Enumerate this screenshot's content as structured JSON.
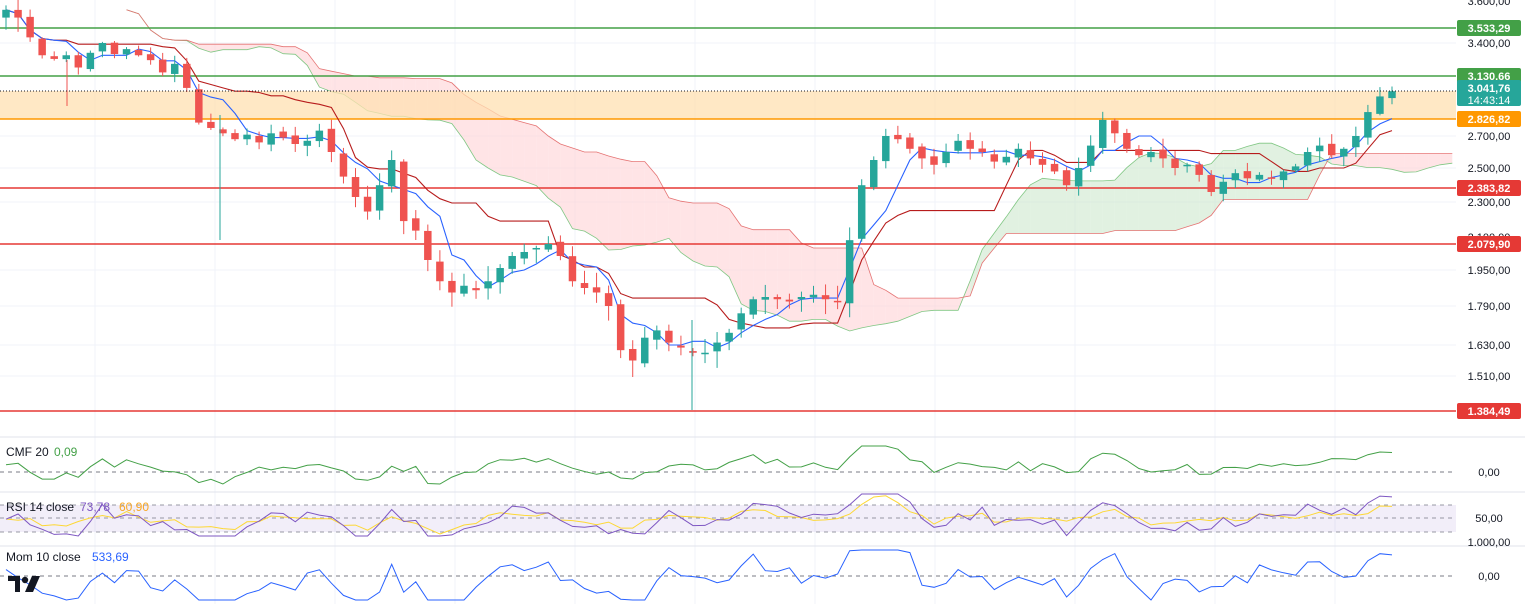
{
  "chart_data": {
    "type": "candlestick",
    "price_axis": {
      "ticks": [
        "3.400,00",
        "2.700,00",
        "2.500,00",
        "2.300,00",
        "1.950,00",
        "1.790,00",
        "1.630,00",
        "1.510,00"
      ],
      "partial_ticks": [
        "3.600,00",
        "2.100,00"
      ]
    },
    "horizontal_levels": [
      {
        "label": "3.533,29",
        "value": 3533.29,
        "color": "#43a047"
      },
      {
        "label": "3.130,66",
        "value": 3130.66,
        "color": "#43a047"
      },
      {
        "label": "2.826,82",
        "value": 2826.82,
        "color": "#ff9800"
      },
      {
        "label": "2.383,82",
        "value": 2383.82,
        "color": "#e53935"
      },
      {
        "label": "2.079,90",
        "value": 2079.9,
        "color": "#e53935"
      },
      {
        "label": "1.384,49",
        "value": 1384.49,
        "color": "#e53935"
      }
    ],
    "current_price": {
      "label": "3.041,76",
      "countdown": "14:43:14",
      "value": 3041.76,
      "color": "#26a69a"
    },
    "zone": {
      "from": 2826.82,
      "to": 3041.76,
      "color": "#ffe0b2"
    },
    "candles_close": [
      3580,
      3560,
      3450,
      3300,
      3270,
      3300,
      3200,
      3320,
      3400,
      3310,
      3350,
      3300,
      3260,
      3160,
      3230,
      3060,
      2800,
      2760,
      2720,
      2680,
      2710,
      2660,
      2720,
      2690,
      2650,
      2670,
      2740,
      2600,
      2450,
      2330,
      2250,
      2400,
      2550,
      2200,
      2150,
      2000,
      1900,
      1850,
      1880,
      1860,
      1900,
      1960,
      2020,
      2040,
      2060,
      2080,
      2020,
      1900,
      1870,
      1850,
      1790,
      1610,
      1570,
      1660,
      1690,
      1640,
      1620,
      1600,
      1600,
      1640,
      1680,
      1760,
      1820,
      1830,
      1820,
      1810,
      1830,
      1840,
      1820,
      1810,
      2100,
      2400,
      2550,
      2700,
      2680,
      2620,
      2560,
      2520,
      2600,
      2670,
      2620,
      2600,
      2540,
      2570,
      2620,
      2560,
      2520,
      2480,
      2400,
      2500,
      2640,
      2820,
      2720,
      2620,
      2580,
      2600,
      2560,
      2500,
      2520,
      2460,
      2360,
      2420,
      2470,
      2440,
      2460,
      2440,
      2480,
      2510,
      2600,
      2640,
      2580,
      2620,
      2700,
      2880,
      3000,
      3040
    ],
    "cmf": {
      "label": "CMF 20",
      "value": "0,09",
      "axis_ticks": [
        "0,00"
      ]
    },
    "rsi": {
      "label": "RSI 14 close",
      "value": "73,78",
      "ma_value": "60,90",
      "axis_ticks": [
        "50,00"
      ]
    },
    "mom": {
      "label": "Mom 10 close",
      "value": "533,69",
      "axis_ticks": [
        "1.000,00",
        "0,00"
      ]
    },
    "colors": {
      "up": "#26a69a",
      "down": "#ef5350",
      "tenkan": "#2962ff",
      "kijun": "#b71c1c",
      "cloud_bull": "#c8e6c9",
      "cloud_bear": "#ffcdd2",
      "cmf": "#43a047",
      "rsi": "#7e57c2",
      "rsi_ma": "#fdd835",
      "mom": "#2962ff",
      "grid": "#f0f3fa"
    }
  },
  "logo": {
    "text": "TV"
  }
}
